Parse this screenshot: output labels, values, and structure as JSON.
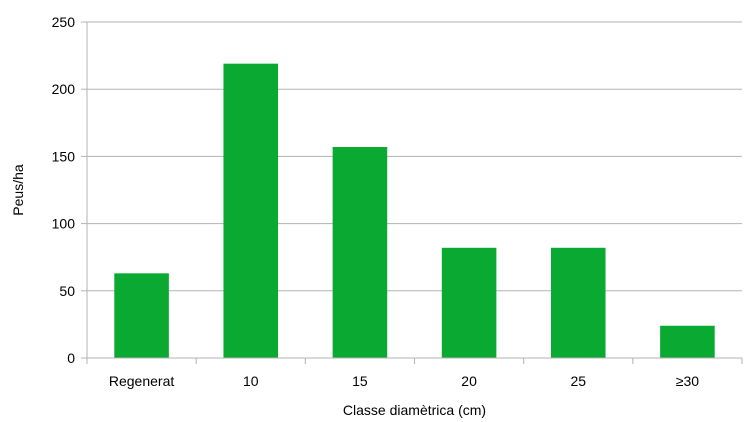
{
  "chart_data": {
    "type": "bar",
    "title": "",
    "xlabel": "Classe diamètrica (cm)",
    "ylabel": "Peus/ha",
    "categories": [
      "Regenerat",
      "10",
      "15",
      "20",
      "25",
      "≥30"
    ],
    "values": [
      63,
      219,
      157,
      82,
      82,
      24
    ],
    "ylim": [
      0,
      250
    ],
    "yticks": [
      "0",
      "50",
      "100",
      "150",
      "200",
      "250"
    ],
    "grid": true,
    "legend": "none",
    "colors": {
      "bar": "#0aaa32",
      "grid": "#b3b3b3",
      "axis": "#b3b3b3"
    }
  }
}
